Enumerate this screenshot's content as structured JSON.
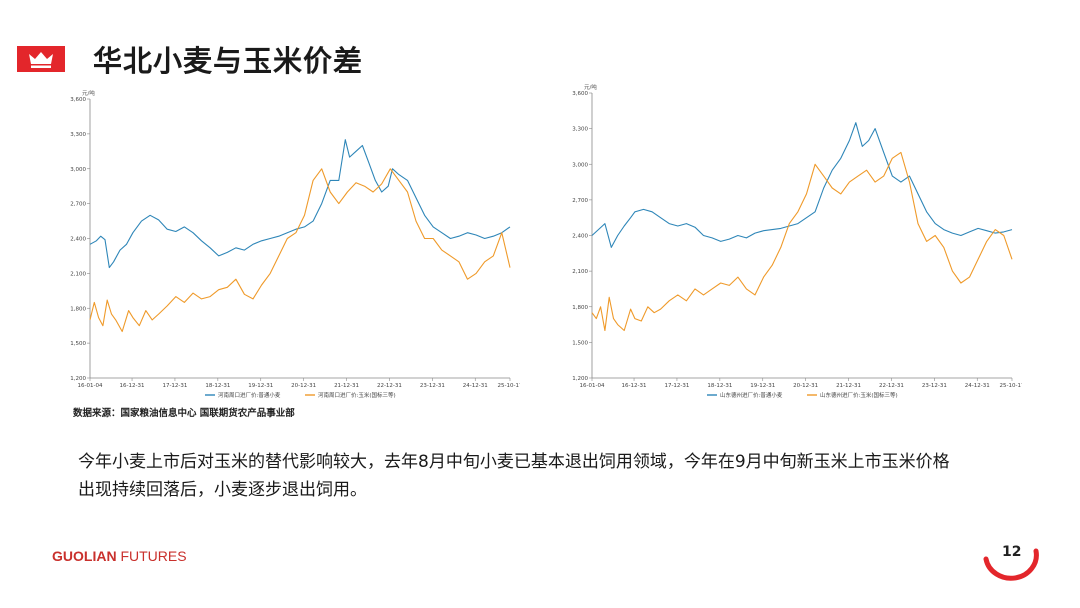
{
  "header": {
    "title": "华北小麦与玉米价差",
    "logo_icon": "crown-icon",
    "accent": "#e3262b"
  },
  "source_text": "数据来源：国家粮油信息中心 国联期货农产品事业部",
  "body_text": "今年小麦上市后对玉米的替代影响较大，去年8月中旬小麦已基本退出饲用领域，今年在9月中旬新玉米上市玉米价格出现持续回落后，小麦逐步退出饲用。",
  "footer": {
    "brand_bold": "GUOLIAN",
    "brand_rest": " FUTURES",
    "page_number": "12"
  },
  "chart_data": [
    {
      "type": "line",
      "unit": "元/吨",
      "ylim": [
        1200,
        3600
      ],
      "yticks": [
        1200,
        1500,
        1800,
        2100,
        2400,
        2700,
        3000,
        3300,
        3600
      ],
      "ytick_labels": [
        "1,200",
        "1,500",
        "1,800",
        "2,100",
        "2,400",
        "2,700",
        "3,000",
        "3,300",
        "3,600"
      ],
      "x_tick_labels": [
        "16-01-04",
        "16-12-31",
        "17-12-31",
        "18-12-31",
        "19-12-31",
        "20-12-31",
        "21-12-31",
        "22-12-31",
        "23-12-31",
        "24-12-31",
        "25-10-17"
      ],
      "x_tick_pos": [
        0,
        0.98,
        1.98,
        2.98,
        3.98,
        4.98,
        5.98,
        6.98,
        7.98,
        8.98,
        9.79
      ],
      "xlim": [
        0,
        9.79
      ],
      "legend_position": "bottom",
      "series": [
        {
          "name": "河南周口进厂价:普通小麦",
          "color": "#2e86b8",
          "x": [
            0,
            0.15,
            0.25,
            0.35,
            0.45,
            0.55,
            0.7,
            0.85,
            1.0,
            1.2,
            1.4,
            1.6,
            1.8,
            2.0,
            2.2,
            2.4,
            2.6,
            2.8,
            3.0,
            3.2,
            3.4,
            3.6,
            3.8,
            4.0,
            4.2,
            4.4,
            4.6,
            4.8,
            5.0,
            5.2,
            5.4,
            5.6,
            5.8,
            5.95,
            6.05,
            6.2,
            6.35,
            6.5,
            6.65,
            6.8,
            6.95,
            7.05,
            7.2,
            7.4,
            7.6,
            7.8,
            8.0,
            8.2,
            8.4,
            8.6,
            8.8,
            9.0,
            9.2,
            9.4,
            9.6,
            9.79
          ],
          "values": [
            2350,
            2380,
            2420,
            2390,
            2150,
            2200,
            2300,
            2350,
            2450,
            2550,
            2600,
            2560,
            2480,
            2460,
            2500,
            2450,
            2380,
            2320,
            2250,
            2280,
            2320,
            2300,
            2350,
            2380,
            2400,
            2420,
            2450,
            2480,
            2500,
            2550,
            2700,
            2900,
            2900,
            3250,
            3100,
            3150,
            3200,
            3050,
            2900,
            2800,
            2850,
            3000,
            2950,
            2900,
            2750,
            2600,
            2500,
            2450,
            2400,
            2420,
            2450,
            2430,
            2400,
            2420,
            2450,
            2500
          ]
        },
        {
          "name": "河南周口进厂价:玉米(国标三等)",
          "color": "#ef9a2a",
          "x": [
            0,
            0.1,
            0.2,
            0.3,
            0.4,
            0.5,
            0.6,
            0.75,
            0.9,
            1.0,
            1.15,
            1.3,
            1.45,
            1.6,
            1.8,
            2.0,
            2.2,
            2.4,
            2.6,
            2.8,
            3.0,
            3.2,
            3.4,
            3.6,
            3.8,
            4.0,
            4.2,
            4.4,
            4.6,
            4.8,
            5.0,
            5.2,
            5.4,
            5.6,
            5.8,
            6.0,
            6.2,
            6.4,
            6.6,
            6.8,
            7.0,
            7.2,
            7.4,
            7.6,
            7.8,
            8.0,
            8.2,
            8.4,
            8.6,
            8.8,
            9.0,
            9.2,
            9.4,
            9.6,
            9.79
          ],
          "values": [
            1700,
            1850,
            1720,
            1650,
            1870,
            1750,
            1700,
            1600,
            1780,
            1720,
            1650,
            1780,
            1700,
            1750,
            1820,
            1900,
            1850,
            1930,
            1880,
            1900,
            1960,
            1980,
            2050,
            1920,
            1880,
            2000,
            2100,
            2250,
            2400,
            2450,
            2600,
            2900,
            3000,
            2800,
            2700,
            2800,
            2880,
            2850,
            2800,
            2870,
            3000,
            2900,
            2800,
            2550,
            2400,
            2400,
            2300,
            2250,
            2200,
            2050,
            2100,
            2200,
            2250,
            2450,
            2150
          ]
        }
      ]
    },
    {
      "type": "line",
      "unit": "元/吨",
      "ylim": [
        1200,
        3600
      ],
      "yticks": [
        1200,
        1500,
        1800,
        2100,
        2400,
        2700,
        3000,
        3300,
        3600
      ],
      "ytick_labels": [
        "1,200",
        "1,500",
        "1,800",
        "2,100",
        "2,400",
        "2,700",
        "3,000",
        "3,300",
        "3,600"
      ],
      "x_tick_labels": [
        "16-01-04",
        "16-12-31",
        "17-12-31",
        "18-12-31",
        "19-12-31",
        "20-12-31",
        "21-12-31",
        "22-12-31",
        "23-12-31",
        "24-12-31",
        "25-10-17"
      ],
      "x_tick_pos": [
        0,
        0.98,
        1.98,
        2.98,
        3.98,
        4.98,
        5.98,
        6.98,
        7.98,
        8.98,
        9.79
      ],
      "xlim": [
        0,
        9.79
      ],
      "legend_position": "bottom",
      "series": [
        {
          "name": "山东德州进厂价:普通小麦",
          "color": "#2e86b8",
          "x": [
            0,
            0.15,
            0.3,
            0.45,
            0.6,
            0.75,
            0.9,
            1.0,
            1.2,
            1.4,
            1.6,
            1.8,
            2.0,
            2.2,
            2.4,
            2.6,
            2.8,
            3.0,
            3.2,
            3.4,
            3.6,
            3.8,
            4.0,
            4.2,
            4.4,
            4.6,
            4.8,
            5.0,
            5.2,
            5.4,
            5.6,
            5.8,
            6.0,
            6.15,
            6.3,
            6.45,
            6.6,
            6.8,
            7.0,
            7.2,
            7.4,
            7.6,
            7.8,
            8.0,
            8.2,
            8.4,
            8.6,
            8.8,
            9.0,
            9.2,
            9.4,
            9.6,
            9.79
          ],
          "values": [
            2400,
            2450,
            2500,
            2300,
            2400,
            2480,
            2550,
            2600,
            2620,
            2600,
            2550,
            2500,
            2480,
            2500,
            2470,
            2400,
            2380,
            2350,
            2370,
            2400,
            2380,
            2420,
            2440,
            2450,
            2460,
            2480,
            2500,
            2550,
            2600,
            2800,
            2950,
            3050,
            3200,
            3350,
            3150,
            3200,
            3300,
            3100,
            2900,
            2850,
            2900,
            2750,
            2600,
            2500,
            2450,
            2420,
            2400,
            2430,
            2460,
            2440,
            2420,
            2430,
            2450
          ]
        },
        {
          "name": "山东德州进厂价:玉米(国标三等)",
          "color": "#ef9a2a",
          "x": [
            0,
            0.1,
            0.2,
            0.3,
            0.4,
            0.5,
            0.6,
            0.75,
            0.9,
            1.0,
            1.15,
            1.3,
            1.45,
            1.6,
            1.8,
            2.0,
            2.2,
            2.4,
            2.6,
            2.8,
            3.0,
            3.2,
            3.4,
            3.6,
            3.8,
            4.0,
            4.2,
            4.4,
            4.6,
            4.8,
            5.0,
            5.2,
            5.4,
            5.6,
            5.8,
            6.0,
            6.2,
            6.4,
            6.6,
            6.8,
            7.0,
            7.2,
            7.4,
            7.6,
            7.8,
            8.0,
            8.2,
            8.4,
            8.6,
            8.8,
            9.0,
            9.2,
            9.4,
            9.6,
            9.79
          ],
          "values": [
            1750,
            1700,
            1800,
            1600,
            1880,
            1700,
            1650,
            1600,
            1780,
            1700,
            1680,
            1800,
            1750,
            1780,
            1850,
            1900,
            1850,
            1950,
            1900,
            1950,
            2000,
            1980,
            2050,
            1950,
            1900,
            2050,
            2150,
            2300,
            2500,
            2600,
            2750,
            3000,
            2900,
            2800,
            2750,
            2850,
            2900,
            2950,
            2850,
            2900,
            3050,
            3100,
            2850,
            2500,
            2350,
            2400,
            2300,
            2100,
            2000,
            2050,
            2200,
            2350,
            2450,
            2400,
            2200
          ]
        }
      ]
    }
  ]
}
